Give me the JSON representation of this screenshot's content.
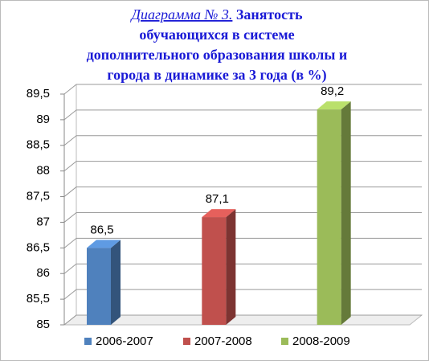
{
  "chart_data": {
    "type": "bar3d",
    "title": {
      "label": "Диаграмма № 3.",
      "lines": [
        "Занятость",
        "обучающихся  в системе",
        "дополнительного образования школы и",
        "города в динамике за 3 года (в  %)"
      ]
    },
    "categories": [
      null
    ],
    "series": [
      {
        "name": "2006-2007",
        "color": "#4f81bd",
        "values": [
          86.5
        ],
        "value_labels": [
          "86,5"
        ]
      },
      {
        "name": "2007-2008",
        "color": "#c0504d",
        "values": [
          87.1
        ],
        "value_labels": [
          "87,1"
        ]
      },
      {
        "name": "2008-2009",
        "color": "#9bbb59",
        "values": [
          89.2
        ],
        "value_labels": [
          "89,2"
        ]
      }
    ],
    "ylim": [
      85,
      89.5
    ],
    "yticks": [
      85,
      {
        "value": 85.5,
        "label": "85,5"
      },
      86,
      {
        "value": 86.5,
        "label": "86,5"
      },
      87,
      {
        "value": 87.5,
        "label": "87,5"
      },
      88,
      {
        "value": 88.5,
        "label": "88,5"
      },
      89,
      {
        "value": 89.5,
        "label": "89,5"
      }
    ],
    "grid": true,
    "legend": "bottom"
  }
}
